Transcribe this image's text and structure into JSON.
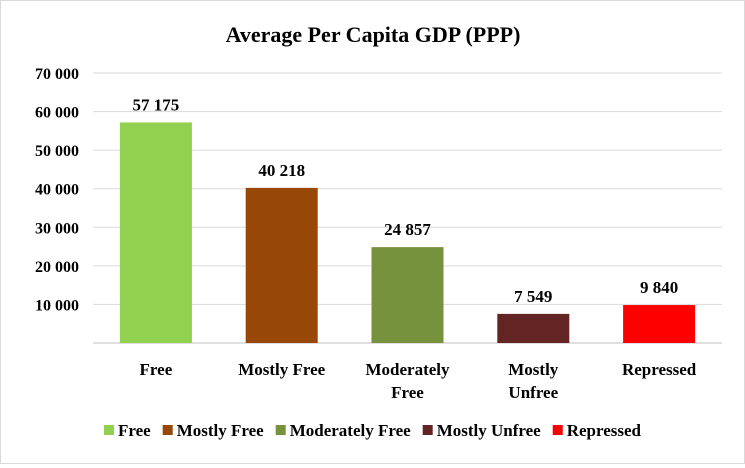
{
  "chart_data": {
    "type": "bar",
    "title": "Average Per Capita GDP (PPP)",
    "categories": [
      [
        "Free"
      ],
      [
        "Mostly Free"
      ],
      [
        "Moderately",
        "Free"
      ],
      [
        "Mostly",
        "Unfree"
      ],
      [
        "Repressed"
      ]
    ],
    "series": [
      {
        "values": [
          57175,
          40218,
          24857,
          7549,
          9840
        ],
        "labels": [
          "57 175",
          "40 218",
          "24 857",
          "7 549",
          "9 840"
        ],
        "colors": [
          "#92d050",
          "#974706",
          "#76923c",
          "#632523",
          "#ff0000"
        ]
      }
    ],
    "ylim": [
      0,
      70000
    ],
    "yticks": [
      10000,
      20000,
      30000,
      40000,
      50000,
      60000,
      70000
    ],
    "ytick_labels": [
      "10 000",
      "20 000",
      "30 000",
      "40 000",
      "50 000",
      "60 000",
      "70 000"
    ],
    "grid": true,
    "legend": {
      "position": "bottom",
      "entries": [
        "Free",
        "Mostly Free",
        "Moderately Free",
        "Mostly Unfree",
        "Repressed"
      ]
    }
  }
}
